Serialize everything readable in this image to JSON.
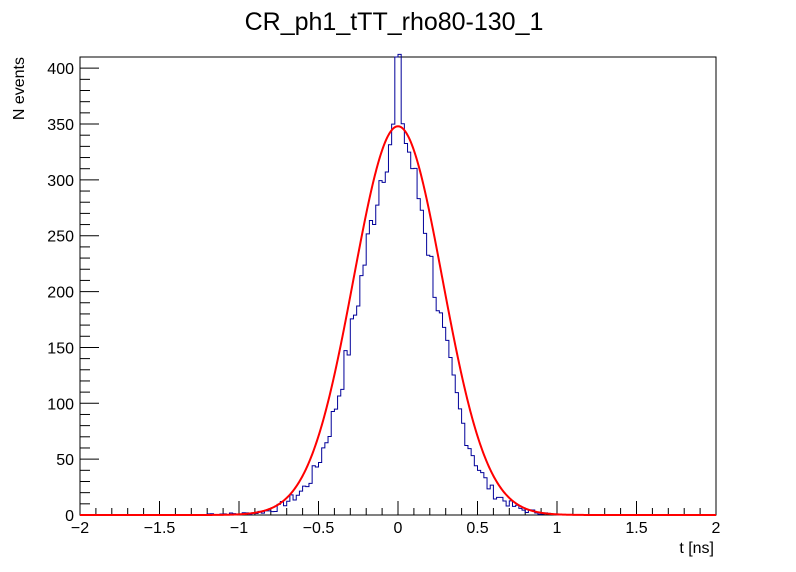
{
  "chart_data": {
    "type": "histogram",
    "title": "CR_ph1_tTT_rho80-130_1",
    "xlabel": "t [ns]",
    "ylabel": "N events",
    "xlim": [
      -2,
      2
    ],
    "ylim": [
      0,
      410
    ],
    "x_ticks": [
      -2,
      -1.5,
      -1,
      -0.5,
      0,
      0.5,
      1,
      1.5,
      2
    ],
    "x_tick_labels": [
      "−2",
      "−1.5",
      "−1",
      "−0.5",
      "0",
      "0.5",
      "1",
      "1.5",
      "2"
    ],
    "y_ticks": [
      0,
      50,
      100,
      150,
      200,
      250,
      300,
      350,
      400
    ],
    "y_tick_labels": [
      "0",
      "50",
      "100",
      "150",
      "200",
      "250",
      "300",
      "350",
      "400"
    ],
    "grid": false,
    "histogram": {
      "color": "#000099",
      "bin_width": 0.02,
      "points": [
        [
          -1.0,
          1
        ],
        [
          -0.9,
          2
        ],
        [
          -0.8,
          4
        ],
        [
          -0.76,
          6
        ],
        [
          -0.7,
          12
        ],
        [
          -0.66,
          15
        ],
        [
          -0.6,
          22
        ],
        [
          -0.56,
          30
        ],
        [
          -0.52,
          40
        ],
        [
          -0.48,
          55
        ],
        [
          -0.44,
          72
        ],
        [
          -0.4,
          92
        ],
        [
          -0.36,
          116
        ],
        [
          -0.32,
          143
        ],
        [
          -0.28,
          172
        ],
        [
          -0.24,
          203
        ],
        [
          -0.2,
          235
        ],
        [
          -0.16,
          266
        ],
        [
          -0.12,
          295
        ],
        [
          -0.08,
          320
        ],
        [
          -0.04,
          340
        ],
        [
          -0.02,
          345
        ],
        [
          0.0,
          410
        ],
        [
          0.02,
          375
        ],
        [
          0.04,
          340
        ],
        [
          0.08,
          320
        ],
        [
          0.12,
          290
        ],
        [
          0.16,
          270
        ],
        [
          0.2,
          232
        ],
        [
          0.24,
          198
        ],
        [
          0.28,
          165
        ],
        [
          0.32,
          137
        ],
        [
          0.36,
          110
        ],
        [
          0.4,
          86
        ],
        [
          0.44,
          66
        ],
        [
          0.48,
          52
        ],
        [
          0.52,
          38
        ],
        [
          0.56,
          28
        ],
        [
          0.6,
          20
        ],
        [
          0.66,
          14
        ],
        [
          0.7,
          10
        ],
        [
          0.76,
          6
        ],
        [
          0.8,
          4
        ],
        [
          0.9,
          2
        ],
        [
          1.0,
          0
        ]
      ]
    },
    "fit": {
      "type": "gaussian",
      "color": "#ff0000",
      "amplitude": 348,
      "mean": 0.0,
      "sigma": 0.28
    }
  }
}
